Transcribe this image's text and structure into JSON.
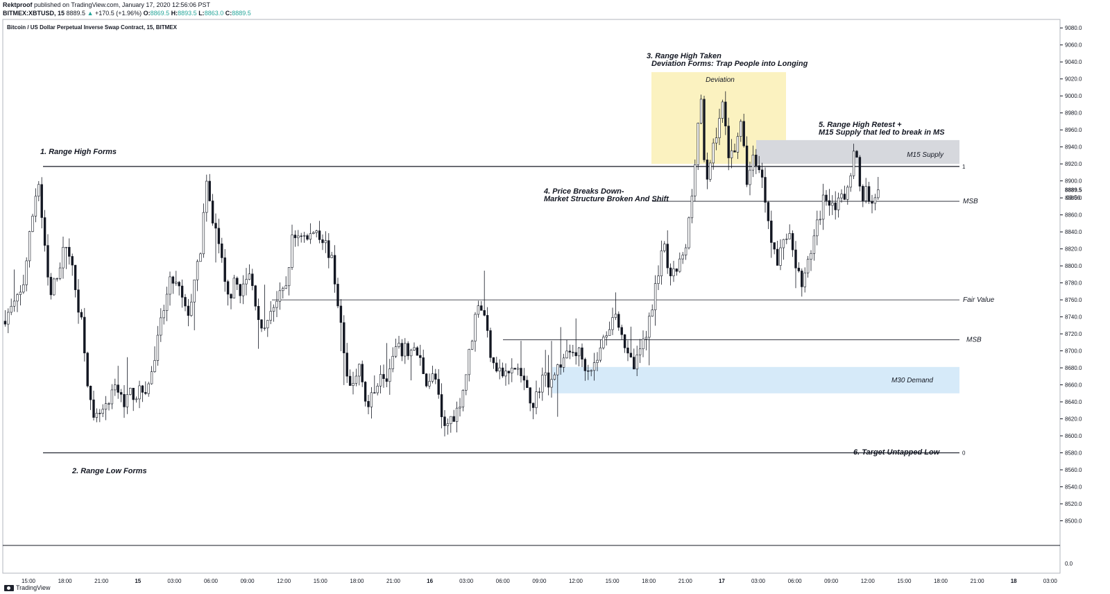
{
  "header": {
    "author": "Rektproof",
    "published": " published on TradingView.com, January 17, 2020 12:56:06 PST",
    "symbol": "BITMEX:XBTUSD, 15",
    "last": "8889.5",
    "change": "+170.5 (+1.96%)",
    "o_label": "O:",
    "o": "8869.5",
    "h_label": "H:",
    "h": "8893.5",
    "l_label": "L:",
    "l": "8863.0",
    "c_label": "C:",
    "c": "8889.5",
    "up_arrow_icon": "triangle-up-icon"
  },
  "chart_data": {
    "type": "candlestick",
    "title": "Bitcoin / US Dollar Perpetual Inverse Swap Contract, 15, BITMEX",
    "y_ticks": [
      "9080.0",
      "9060.0",
      "9040.0",
      "9020.0",
      "9000.0",
      "8980.0",
      "8960.0",
      "8940.0",
      "8920.0",
      "8900.0",
      "8880.0",
      "8860.0",
      "8840.0",
      "8820.0",
      "8800.0",
      "8780.0",
      "8760.0",
      "8740.0",
      "8720.0",
      "8700.0",
      "8680.0",
      "8660.0",
      "8640.0",
      "8620.0",
      "8600.0",
      "8580.0",
      "8560.0",
      "8540.0",
      "8520.0",
      "8500.0"
    ],
    "ylim": [
      8480,
      9090
    ],
    "x_ticks": [
      "15:00",
      "18:00",
      "21:00",
      "15",
      "03:00",
      "06:00",
      "09:00",
      "12:00",
      "15:00",
      "18:00",
      "21:00",
      "16",
      "03:00",
      "06:00",
      "09:00",
      "12:00",
      "15:00",
      "18:00",
      "21:00",
      "17",
      "03:00",
      "06:00",
      "09:00",
      "12:00",
      "15:00",
      "18:00",
      "21:00",
      "18",
      "03:00"
    ],
    "last_price": "8889.5",
    "countdown": "03:56",
    "volume_pane_label": "0.0",
    "levels": [
      {
        "name": "Range High",
        "price": 8917,
        "label": "1"
      },
      {
        "name": "Range Low",
        "price": 8580,
        "label": "0"
      },
      {
        "name": "MSB upper",
        "price": 8876,
        "label": "MSB"
      },
      {
        "name": "Fair Value",
        "price": 8760,
        "label": "Fair Value"
      },
      {
        "name": "MSB lower",
        "price": 8713,
        "label": "MSB"
      }
    ],
    "zones": [
      {
        "label": "Deviation",
        "top": 9028,
        "bottom": 8920,
        "color": "#fbf2c0"
      },
      {
        "label": "M15 Supply",
        "top": 8948,
        "bottom": 8920,
        "color": "#d6d8dd"
      },
      {
        "label": "M30 Demand",
        "top": 8681,
        "bottom": 8650,
        "color": "#d6eaf9"
      }
    ],
    "annotations": [
      "1. Range High Forms",
      "2. Range Low Forms",
      "3. Range High Taken",
      "Deviation Forms: Trap People into Longing",
      "4. Price Breaks Down-",
      "Market Structure Broken And Shift",
      "5. Range High Retest +",
      "M15 Supply that led to break in MS",
      "6. Target Untapped Low"
    ],
    "path": [
      [
        0,
        8730
      ],
      [
        20,
        8750
      ],
      [
        35,
        8770
      ],
      [
        50,
        8860
      ],
      [
        58,
        8905
      ],
      [
        66,
        8830
      ],
      [
        75,
        8760
      ],
      [
        88,
        8800
      ],
      [
        100,
        8830
      ],
      [
        112,
        8770
      ],
      [
        122,
        8730
      ],
      [
        130,
        8660
      ],
      [
        137,
        8612
      ],
      [
        146,
        8625
      ],
      [
        158,
        8630
      ],
      [
        170,
        8660
      ],
      [
        180,
        8640
      ],
      [
        192,
        8650
      ],
      [
        205,
        8650
      ],
      [
        218,
        8660
      ],
      [
        228,
        8700
      ],
      [
        238,
        8745
      ],
      [
        250,
        8785
      ],
      [
        262,
        8770
      ],
      [
        272,
        8740
      ],
      [
        282,
        8770
      ],
      [
        292,
        8820
      ],
      [
        300,
        8895
      ],
      [
        308,
        8860
      ],
      [
        318,
        8830
      ],
      [
        330,
        8760
      ],
      [
        342,
        8780
      ],
      [
        352,
        8770
      ],
      [
        362,
        8790
      ],
      [
        374,
        8750
      ],
      [
        382,
        8710
      ],
      [
        392,
        8750
      ],
      [
        404,
        8760
      ],
      [
        414,
        8770
      ],
      [
        424,
        8830
      ],
      [
        436,
        8840
      ],
      [
        446,
        8830
      ],
      [
        458,
        8845
      ],
      [
        470,
        8830
      ],
      [
        480,
        8810
      ],
      [
        488,
        8770
      ],
      [
        496,
        8720
      ],
      [
        504,
        8655
      ],
      [
        514,
        8660
      ],
      [
        522,
        8690
      ],
      [
        532,
        8630
      ],
      [
        542,
        8650
      ],
      [
        552,
        8680
      ],
      [
        562,
        8670
      ],
      [
        572,
        8700
      ],
      [
        582,
        8700
      ],
      [
        596,
        8700
      ],
      [
        606,
        8695
      ],
      [
        618,
        8665
      ],
      [
        630,
        8670
      ],
      [
        642,
        8605
      ],
      [
        652,
        8620
      ],
      [
        662,
        8630
      ],
      [
        672,
        8660
      ],
      [
        682,
        8710
      ],
      [
        692,
        8760
      ],
      [
        700,
        8745
      ],
      [
        710,
        8700
      ],
      [
        720,
        8680
      ],
      [
        730,
        8670
      ],
      [
        740,
        8675
      ],
      [
        750,
        8680
      ],
      [
        762,
        8650
      ],
      [
        774,
        8640
      ],
      [
        784,
        8670
      ],
      [
        796,
        8665
      ],
      [
        806,
        8680
      ],
      [
        816,
        8690
      ],
      [
        826,
        8700
      ],
      [
        836,
        8700
      ],
      [
        846,
        8685
      ],
      [
        858,
        8680
      ],
      [
        868,
        8700
      ],
      [
        878,
        8725
      ],
      [
        888,
        8745
      ],
      [
        898,
        8730
      ],
      [
        908,
        8690
      ],
      [
        918,
        8680
      ],
      [
        930,
        8710
      ],
      [
        940,
        8740
      ],
      [
        950,
        8790
      ],
      [
        960,
        8820
      ],
      [
        970,
        8780
      ],
      [
        980,
        8800
      ],
      [
        990,
        8810
      ],
      [
        1000,
        8880
      ],
      [
        1008,
        8960
      ],
      [
        1014,
        9000
      ],
      [
        1020,
        8880
      ],
      [
        1028,
        8930
      ],
      [
        1036,
        8960
      ],
      [
        1044,
        8990
      ],
      [
        1054,
        8930
      ],
      [
        1062,
        8940
      ],
      [
        1070,
        8970
      ],
      [
        1080,
        8900
      ],
      [
        1090,
        8930
      ],
      [
        1100,
        8910
      ],
      [
        1108,
        8870
      ],
      [
        1116,
        8830
      ],
      [
        1124,
        8800
      ],
      [
        1134,
        8840
      ],
      [
        1144,
        8830
      ],
      [
        1154,
        8790
      ],
      [
        1162,
        8780
      ],
      [
        1172,
        8820
      ],
      [
        1182,
        8850
      ],
      [
        1190,
        8880
      ],
      [
        1200,
        8880
      ],
      [
        1210,
        8870
      ],
      [
        1220,
        8880
      ],
      [
        1228,
        8910
      ],
      [
        1236,
        8940
      ],
      [
        1244,
        8880
      ],
      [
        1252,
        8890
      ],
      [
        1260,
        8870
      ],
      [
        1266,
        8889.5
      ]
    ]
  }
}
